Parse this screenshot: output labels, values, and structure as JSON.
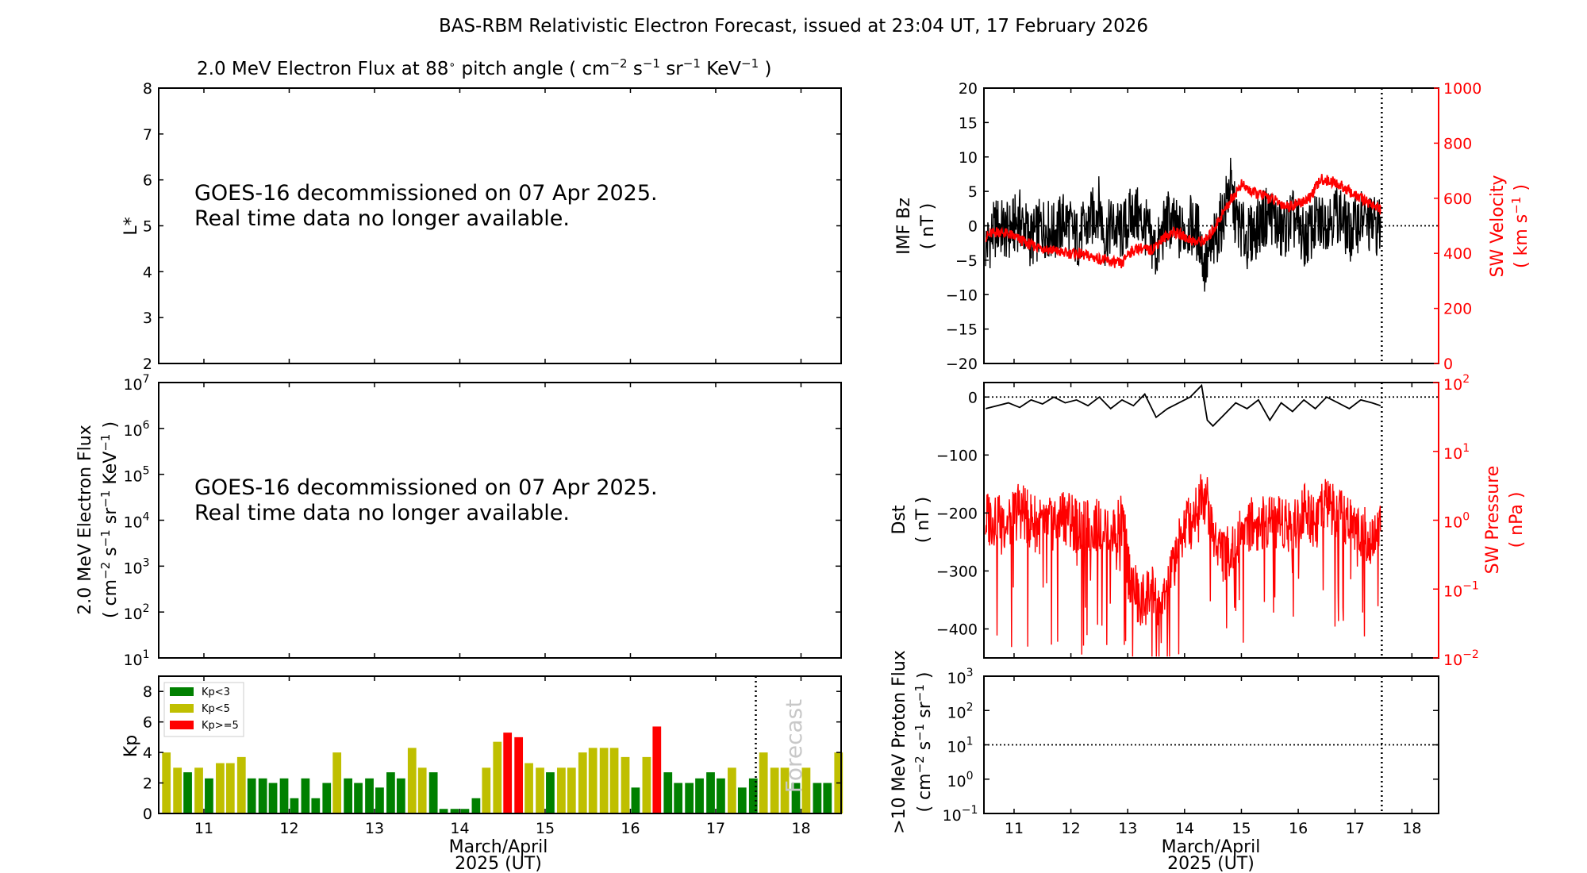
{
  "figure": {
    "title": "BAS-RBM Relativistic Electron Forecast, issued at 23:04 UT, 17 February 2026",
    "panel_title_prefix": "2.0 MeV Electron Flux at 88",
    "panel_title_suffix": " pitch angle ( cm",
    "panel_title_units": "−2 s−1 sr−1 KeV−1 )",
    "notice_line1": "GOES-16 decommissioned on 07 Apr 2025.",
    "notice_line2": "Real time data no longer available.",
    "forecast_label": "Forecast",
    "date_label_line1": "March/April",
    "date_label_line2": "2025 (UT)"
  },
  "chart_data": [
    {
      "type": "heatmap",
      "name": "lstar-panel",
      "ylabel": "L*",
      "ylim": [
        2,
        8
      ],
      "yticks": [
        2,
        3,
        4,
        5,
        6,
        7,
        8
      ],
      "xlim": [
        10.47,
        18.47
      ],
      "xticks": [
        11,
        12,
        13,
        14,
        15,
        16,
        17,
        18
      ],
      "annotation": [
        "GOES-16 decommissioned on 07 Apr 2025.",
        "Real time data no longer available."
      ]
    },
    {
      "type": "line",
      "name": "electron-flux-panel",
      "ylabel": "2.0 MeV Electron Flux",
      "ylabel_units": "( cm−2 s−1 sr−1 KeV−1 )",
      "yscale": "log",
      "ylim": [
        10.0,
        10000000.0
      ],
      "ytick_exponents": [
        1,
        2,
        3,
        4,
        5,
        6,
        7
      ],
      "xlim": [
        10.47,
        18.47
      ],
      "annotation": [
        "GOES-16 decommissioned on 07 Apr 2025.",
        "Real time data no longer available."
      ]
    },
    {
      "type": "bar",
      "name": "kp-panel",
      "ylabel": "Kp",
      "ylim": [
        0,
        9
      ],
      "yticks": [
        0,
        2,
        4,
        6,
        8
      ],
      "xlim": [
        10.47,
        18.47
      ],
      "xticks": [
        11,
        12,
        13,
        14,
        15,
        16,
        17,
        18
      ],
      "bar_width_days": 0.1,
      "legend": {
        "placement": "top-left",
        "entries": [
          {
            "label": "Kp<3",
            "color": "#008000"
          },
          {
            "label": "Kp<5",
            "color": "#bfbf00"
          },
          {
            "label": "Kp>=5",
            "color": "#ff0000"
          }
        ]
      },
      "forecast_start": 17.47,
      "x": [
        10.56,
        10.69,
        10.81,
        10.94,
        11.06,
        11.19,
        11.31,
        11.44,
        11.56,
        11.69,
        11.81,
        11.94,
        12.06,
        12.19,
        12.31,
        12.44,
        12.56,
        12.69,
        12.81,
        12.94,
        13.06,
        13.19,
        13.31,
        13.44,
        13.56,
        13.69,
        13.81,
        13.94,
        14.06,
        14.19,
        14.31,
        14.44,
        14.56,
        14.69,
        14.81,
        14.94,
        15.06,
        15.19,
        15.31,
        15.44,
        15.56,
        15.69,
        15.81,
        15.94,
        16.06,
        16.19,
        16.31,
        16.44,
        16.56,
        16.69,
        16.81,
        16.94,
        17.06,
        17.19,
        17.31,
        17.44,
        17.56,
        17.69,
        17.81,
        17.94,
        18.06,
        18.19,
        18.31,
        18.44
      ],
      "values": [
        4.0,
        3.0,
        2.7,
        3.0,
        2.3,
        3.3,
        3.3,
        3.7,
        2.3,
        2.3,
        2.0,
        2.3,
        1.0,
        2.3,
        1.0,
        2.0,
        4.0,
        2.3,
        2.0,
        2.3,
        1.7,
        2.7,
        2.3,
        4.3,
        3.0,
        2.7,
        0.3,
        0.3,
        0.3,
        1.0,
        3.0,
        4.7,
        5.3,
        5.0,
        3.3,
        3.0,
        2.7,
        3.0,
        3.0,
        4.0,
        4.3,
        4.3,
        4.3,
        3.7,
        1.7,
        3.7,
        5.7,
        2.7,
        2.0,
        2.0,
        2.3,
        2.7,
        2.3,
        3.0,
        1.7,
        2.3,
        4.0,
        3.0,
        3.0,
        2.0,
        3.0,
        2.0,
        2.0,
        4.0
      ]
    },
    {
      "type": "line",
      "name": "imf-sw-velocity-panel",
      "ylabel": "IMF Bz",
      "ylabel_units": "( nT )",
      "ylim": [
        -20,
        20
      ],
      "yticks": [
        -20,
        -15,
        -10,
        -5,
        0,
        5,
        10,
        15,
        20
      ],
      "y2label": "SW Velocity",
      "y2label_units": "( km s−1 )",
      "y2lim": [
        0,
        1000
      ],
      "y2ticks": [
        0,
        200,
        400,
        600,
        800,
        1000
      ],
      "xlim": [
        10.47,
        18.47
      ],
      "present_time": 17.47,
      "series": [
        {
          "name": "IMF Bz",
          "color": "#000000",
          "x": [
            10.5,
            10.7,
            10.9,
            11.1,
            11.3,
            11.5,
            11.7,
            11.9,
            12.1,
            12.3,
            12.5,
            12.6,
            12.7,
            12.9,
            13.1,
            13.3,
            13.5,
            13.7,
            13.9,
            14.1,
            14.25,
            14.35,
            14.5,
            14.7,
            14.8,
            14.9,
            15.1,
            15.3,
            15.5,
            15.7,
            15.9,
            16.1,
            16.3,
            16.5,
            16.7,
            16.9,
            17.1,
            17.3,
            17.45
          ],
          "values": [
            -3,
            0,
            -1,
            1,
            -2,
            0,
            -1,
            1,
            -2,
            0,
            3,
            -2,
            0,
            -1,
            2,
            0,
            -4,
            1,
            -1,
            0,
            -1,
            -6,
            -3,
            2,
            6,
            1,
            -2,
            0,
            2,
            -1,
            1,
            -2,
            0,
            1,
            2,
            -1,
            1,
            0,
            0
          ]
        },
        {
          "name": "SW Velocity",
          "color": "#ff0000",
          "x": [
            10.5,
            10.7,
            10.9,
            11.1,
            11.3,
            11.5,
            11.7,
            11.9,
            12.1,
            12.3,
            12.5,
            12.7,
            12.9,
            13.0,
            13.2,
            13.4,
            13.6,
            13.8,
            14.0,
            14.2,
            14.4,
            14.6,
            14.8,
            15.0,
            15.2,
            15.4,
            15.6,
            15.8,
            16.0,
            16.2,
            16.4,
            16.6,
            16.8,
            17.0,
            17.2,
            17.45
          ],
          "values": [
            460,
            480,
            470,
            450,
            430,
            420,
            410,
            400,
            400,
            390,
            380,
            370,
            360,
            400,
            420,
            410,
            450,
            480,
            460,
            440,
            450,
            520,
            590,
            650,
            620,
            610,
            590,
            570,
            580,
            600,
            670,
            660,
            640,
            610,
            590,
            560
          ]
        }
      ]
    },
    {
      "type": "line",
      "name": "dst-sw-pressure-panel",
      "ylabel": "Dst",
      "ylabel_units": "( nT )",
      "ylim": [
        -450,
        25
      ],
      "yticks": [
        -400,
        -300,
        -200,
        -100,
        0
      ],
      "y2label": "SW Pressure",
      "y2label_units": "( nPa )",
      "y2scale": "log",
      "y2lim": [
        0.01,
        100
      ],
      "y2tick_exponents": [
        -2,
        -1,
        0,
        1,
        2
      ],
      "xlim": [
        10.47,
        18.47
      ],
      "present_time": 17.47,
      "series": [
        {
          "name": "Dst",
          "color": "#000000",
          "x": [
            10.5,
            10.7,
            10.9,
            11.1,
            11.3,
            11.5,
            11.7,
            11.9,
            12.1,
            12.3,
            12.5,
            12.7,
            12.9,
            13.1,
            13.3,
            13.5,
            13.7,
            13.9,
            14.1,
            14.3,
            14.4,
            14.5,
            14.7,
            14.9,
            15.1,
            15.3,
            15.5,
            15.7,
            15.9,
            16.1,
            16.3,
            16.5,
            16.7,
            16.9,
            17.1,
            17.3,
            17.45
          ],
          "values": [
            -20,
            -15,
            -10,
            -18,
            -5,
            -12,
            0,
            -10,
            -5,
            -15,
            0,
            -20,
            -5,
            -15,
            5,
            -35,
            -20,
            -10,
            0,
            20,
            -40,
            -50,
            -30,
            -10,
            -20,
            -5,
            -40,
            -10,
            -25,
            -5,
            -20,
            0,
            -10,
            -20,
            -5,
            -10,
            -15
          ]
        },
        {
          "name": "SW Pressure",
          "color": "#ff0000",
          "x": [
            10.5,
            10.7,
            10.9,
            11.1,
            11.3,
            11.5,
            11.7,
            11.9,
            12.1,
            12.3,
            12.5,
            12.7,
            12.9,
            13.0,
            13.2,
            13.4,
            13.6,
            13.8,
            14.0,
            14.2,
            14.3,
            14.5,
            14.7,
            14.9,
            15.1,
            15.3,
            15.5,
            15.7,
            15.9,
            16.1,
            16.3,
            16.5,
            16.7,
            16.9,
            17.1,
            17.3,
            17.45
          ],
          "values": [
            1.0,
            1.2,
            0.9,
            1.5,
            1.0,
            0.8,
            1.0,
            1.2,
            0.9,
            0.8,
            1.0,
            0.7,
            1.0,
            0.2,
            0.05,
            0.1,
            0.04,
            0.2,
            0.8,
            1.5,
            3.0,
            0.6,
            0.3,
            0.5,
            1.0,
            0.8,
            1.2,
            1.0,
            0.9,
            1.5,
            1.0,
            1.8,
            1.2,
            1.0,
            0.8,
            0.6,
            1.0
          ]
        }
      ]
    },
    {
      "type": "line",
      "name": "proton-flux-panel",
      "ylabel": ">10 MeV Proton Flux",
      "ylabel_units": "( cm−2 s−1 sr−1 )",
      "yscale": "log",
      "ylim": [
        0.1,
        1000
      ],
      "ytick_exponents": [
        -1,
        0,
        1,
        2,
        3
      ],
      "threshold": 10,
      "xlim": [
        10.47,
        18.47
      ],
      "xticks": [
        11,
        12,
        13,
        14,
        15,
        16,
        17,
        18
      ],
      "present_time": 17.47
    }
  ]
}
